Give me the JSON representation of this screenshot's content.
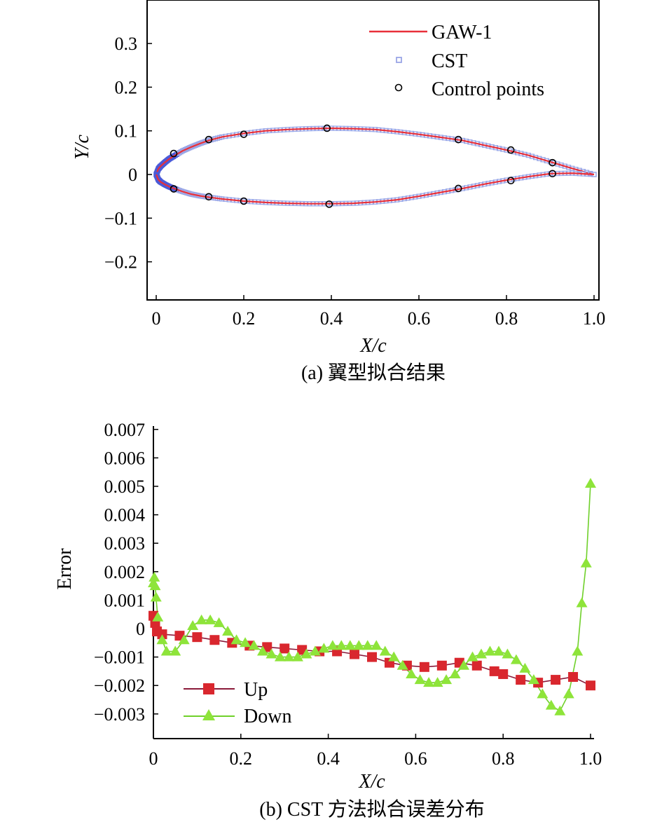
{
  "chart_data": [
    {
      "type": "line",
      "caption": "(a) 翼型拟合结果",
      "xlabel": "X/c",
      "ylabel": "Y/c",
      "xlim": [
        -0.02,
        1.01
      ],
      "ylim": [
        -0.28,
        0.39
      ],
      "xticks": [
        0,
        0.2,
        0.4,
        0.6,
        0.8,
        1.0
      ],
      "xtick_labels": [
        "0",
        "0.2",
        "0.4",
        "0.6",
        "0.8",
        "1.0"
      ],
      "yticks": [
        0.3,
        0.2,
        0.1,
        0,
        -0.1,
        -0.2
      ],
      "ytick_labels": [
        "0.3",
        "0.2",
        "0.1",
        "0",
        "−0.1",
        "−0.2"
      ],
      "legend": [
        "GAW-1",
        "CST",
        "Control points"
      ],
      "colors": {
        "gaw": "#e8303a",
        "cst": "#9aa6e6",
        "cst_dense": "#4a5ad8",
        "control": "#000000"
      },
      "upper_surface": {
        "x": [
          0,
          0.005,
          0.01,
          0.02,
          0.03,
          0.04,
          0.06,
          0.08,
          0.1,
          0.12,
          0.15,
          0.2,
          0.25,
          0.3,
          0.35,
          0.4,
          0.45,
          0.5,
          0.55,
          0.6,
          0.65,
          0.7,
          0.75,
          0.8,
          0.85,
          0.9,
          0.95,
          1.0
        ],
        "y": [
          0,
          0.013,
          0.019,
          0.028,
          0.036,
          0.042,
          0.054,
          0.063,
          0.071,
          0.078,
          0.086,
          0.094,
          0.1,
          0.103,
          0.105,
          0.106,
          0.105,
          0.103,
          0.098,
          0.092,
          0.085,
          0.078,
          0.067,
          0.056,
          0.044,
          0.029,
          0.014,
          0.0
        ]
      },
      "lower_surface": {
        "x": [
          0,
          0.005,
          0.01,
          0.02,
          0.03,
          0.04,
          0.06,
          0.08,
          0.1,
          0.12,
          0.15,
          0.2,
          0.25,
          0.3,
          0.35,
          0.4,
          0.45,
          0.5,
          0.55,
          0.6,
          0.65,
          0.7,
          0.75,
          0.8,
          0.85,
          0.9,
          0.95,
          1.0
        ],
        "y": [
          0,
          -0.012,
          -0.017,
          -0.023,
          -0.028,
          -0.032,
          -0.039,
          -0.045,
          -0.049,
          -0.052,
          -0.056,
          -0.061,
          -0.064,
          -0.066,
          -0.067,
          -0.067,
          -0.066,
          -0.063,
          -0.058,
          -0.05,
          -0.041,
          -0.032,
          -0.022,
          -0.013,
          -0.005,
          0.002,
          0.003,
          0.0
        ]
      },
      "control_points": [
        {
          "x": 0.04,
          "y": 0.048
        },
        {
          "x": 0.12,
          "y": 0.08
        },
        {
          "x": 0.2,
          "y": 0.092
        },
        {
          "x": 0.39,
          "y": 0.106
        },
        {
          "x": 0.69,
          "y": 0.08
        },
        {
          "x": 0.81,
          "y": 0.056
        },
        {
          "x": 0.905,
          "y": 0.027
        },
        {
          "x": 0.04,
          "y": -0.033
        },
        {
          "x": 0.12,
          "y": -0.051
        },
        {
          "x": 0.2,
          "y": -0.061
        },
        {
          "x": 0.395,
          "y": -0.068
        },
        {
          "x": 0.69,
          "y": -0.032
        },
        {
          "x": 0.81,
          "y": -0.014
        },
        {
          "x": 0.905,
          "y": 0.002
        }
      ]
    },
    {
      "type": "line",
      "caption": "(b) CST 方法拟合误差分布",
      "xlabel": "X/c",
      "ylabel": "Error",
      "xlim": [
        0,
        1.0
      ],
      "ylim": [
        -0.0035,
        0.007
      ],
      "xticks": [
        0,
        0.2,
        0.4,
        0.6,
        0.8,
        1.0
      ],
      "xtick_labels": [
        "0",
        "0.2",
        "0.4",
        "0.6",
        "0.8",
        "1.0"
      ],
      "yticks": [
        0.007,
        0.006,
        0.005,
        0.004,
        0.003,
        0.002,
        0.001,
        0,
        -0.001,
        -0.002,
        -0.003
      ],
      "ytick_labels": [
        "0.007",
        "0.006",
        "0.005",
        "0.004",
        "0.003",
        "0.002",
        "0.001",
        "0",
        "−0.001",
        "−0.002",
        "−0.003"
      ],
      "legend": [
        "Up",
        "Down"
      ],
      "series": [
        {
          "name": "Up",
          "color": "#d9272e",
          "line_color": "#8b1a3a",
          "marker": "square",
          "x": [
            0,
            0.004,
            0.008,
            0.02,
            0.06,
            0.1,
            0.14,
            0.18,
            0.22,
            0.26,
            0.3,
            0.34,
            0.38,
            0.42,
            0.46,
            0.5,
            0.54,
            0.58,
            0.62,
            0.66,
            0.7,
            0.74,
            0.78,
            0.8,
            0.84,
            0.88,
            0.92,
            0.96,
            1.0
          ],
          "y": [
            0.00045,
            0.0002,
            -0.0001,
            -0.0002,
            -0.00025,
            -0.0003,
            -0.0004,
            -0.0005,
            -0.0006,
            -0.00065,
            -0.0007,
            -0.00075,
            -0.0008,
            -0.0008,
            -0.0009,
            -0.001,
            -0.0012,
            -0.0013,
            -0.00135,
            -0.0013,
            -0.0012,
            -0.0013,
            -0.0015,
            -0.0016,
            -0.0018,
            -0.0019,
            -0.0018,
            -0.0017,
            -0.002
          ]
        },
        {
          "name": "Down",
          "color": "#8ee43a",
          "line_color": "#6fd02a",
          "marker": "triangle",
          "x": [
            0,
            0.002,
            0.004,
            0.006,
            0.01,
            0.02,
            0.03,
            0.05,
            0.07,
            0.09,
            0.11,
            0.13,
            0.15,
            0.17,
            0.19,
            0.21,
            0.23,
            0.25,
            0.27,
            0.29,
            0.31,
            0.33,
            0.35,
            0.37,
            0.39,
            0.41,
            0.43,
            0.45,
            0.47,
            0.49,
            0.51,
            0.53,
            0.55,
            0.57,
            0.59,
            0.61,
            0.63,
            0.65,
            0.67,
            0.69,
            0.71,
            0.73,
            0.75,
            0.77,
            0.79,
            0.81,
            0.83,
            0.85,
            0.87,
            0.89,
            0.91,
            0.93,
            0.95,
            0.97,
            0.98,
            0.99,
            1.0
          ],
          "y": [
            0.0016,
            0.0018,
            0.0015,
            0.0011,
            0.0004,
            -0.0004,
            -0.0008,
            -0.0008,
            -0.0004,
            0.0001,
            0.0003,
            0.0003,
            0.0002,
            -0.0001,
            -0.0004,
            -0.0005,
            -0.0006,
            -0.0008,
            -0.0009,
            -0.001,
            -0.001,
            -0.001,
            -0.0009,
            -0.0008,
            -0.0007,
            -0.0006,
            -0.0006,
            -0.0006,
            -0.0006,
            -0.0006,
            -0.0006,
            -0.0008,
            -0.001,
            -0.0013,
            -0.0016,
            -0.0018,
            -0.0019,
            -0.0019,
            -0.0018,
            -0.0016,
            -0.0013,
            -0.001,
            -0.0009,
            -0.0008,
            -0.0008,
            -0.0009,
            -0.0011,
            -0.0014,
            -0.0018,
            -0.0023,
            -0.0027,
            -0.0029,
            -0.0023,
            -0.0008,
            0.0009,
            0.0023,
            0.0051
          ]
        }
      ]
    }
  ]
}
